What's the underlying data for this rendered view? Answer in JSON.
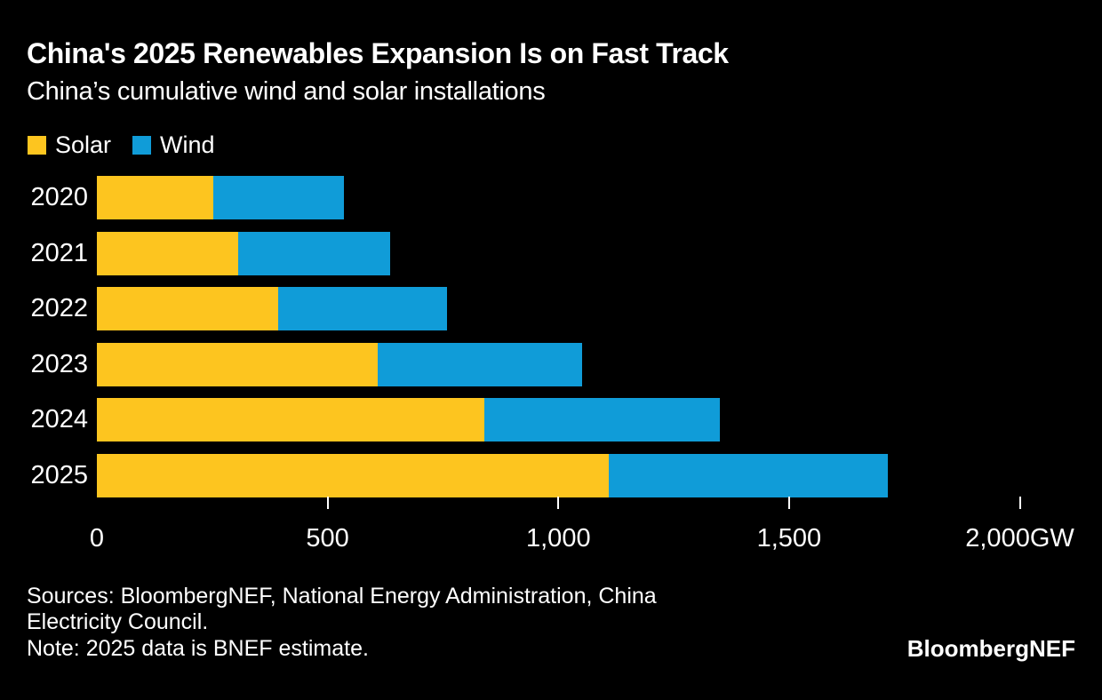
{
  "header": {
    "title": "China's 2025 Renewables Expansion Is on Fast Track",
    "subtitle": "China’s cumulative wind and solar installations"
  },
  "legend": {
    "items": [
      {
        "label": "Solar",
        "color": "#fdc51f"
      },
      {
        "label": "Wind",
        "color": "#109cd8"
      }
    ]
  },
  "colors": {
    "background": "#000000",
    "text": "#ffffff",
    "solar": "#fdc51f",
    "wind": "#109cd8"
  },
  "chart_data": {
    "type": "bar",
    "orientation": "horizontal",
    "stacked": true,
    "title": "China's 2025 Renewables Expansion Is on Fast Track",
    "subtitle": "China’s cumulative wind and solar installations",
    "categories": [
      "2020",
      "2021",
      "2022",
      "2023",
      "2024",
      "2025"
    ],
    "series": [
      {
        "name": "Solar",
        "color": "#fdc51f",
        "values": [
          253,
          306,
          393,
          609,
          840,
          1110
        ]
      },
      {
        "name": "Wind",
        "color": "#109cd8",
        "values": [
          282,
          329,
          365,
          442,
          510,
          605
        ]
      }
    ],
    "totals": [
      535,
      635,
      758,
      1051,
      1350,
      1715
    ],
    "unit": "GW",
    "xlabel": "",
    "ylabel": "",
    "xlim": [
      0,
      2000
    ],
    "x_ticks": [
      {
        "value": 0,
        "label": "0",
        "has_mark": false
      },
      {
        "value": 500,
        "label": "500",
        "has_mark": true
      },
      {
        "value": 1000,
        "label": "1,000",
        "has_mark": true
      },
      {
        "value": 1500,
        "label": "1,500",
        "has_mark": true
      },
      {
        "value": 2000,
        "label": "2,000GW",
        "has_mark": true
      }
    ],
    "grid": false,
    "legend_position": "top-left"
  },
  "footer": {
    "lines": [
      "Sources: BloombergNEF, National Energy Administration, China",
      "Electricity Council.",
      "Note: 2025 data is BNEF estimate."
    ],
    "brand": "BloombergNEF"
  }
}
